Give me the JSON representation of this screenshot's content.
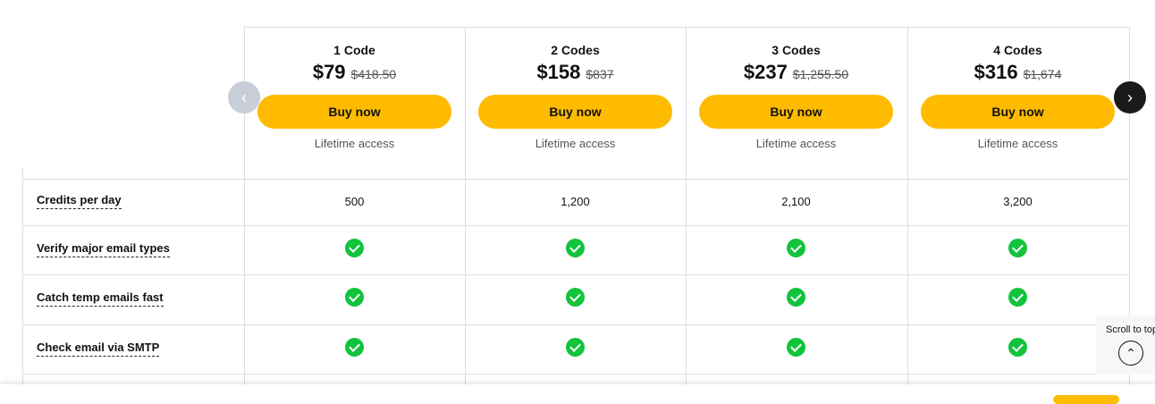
{
  "plans": [
    {
      "name": "1 Code",
      "price": "$79",
      "old_price": "$418.50",
      "button": "Buy now",
      "note": "Lifetime access"
    },
    {
      "name": "2 Codes",
      "price": "$158",
      "old_price": "$837",
      "button": "Buy now",
      "note": "Lifetime access"
    },
    {
      "name": "3 Codes",
      "price": "$237",
      "old_price": "$1,255.50",
      "button": "Buy now",
      "note": "Lifetime access"
    },
    {
      "name": "4 Codes",
      "price": "$316",
      "old_price": "$1,674",
      "button": "Buy now",
      "note": "Lifetime access"
    }
  ],
  "features": [
    {
      "label": "Credits per day",
      "values": [
        "500",
        "1,200",
        "2,100",
        "3,200"
      ]
    },
    {
      "label": "Verify major email types",
      "values": [
        "check",
        "check",
        "check",
        "check"
      ]
    },
    {
      "label": "Catch temp emails fast",
      "values": [
        "check",
        "check",
        "check",
        "check"
      ]
    },
    {
      "label": "Check email via SMTP",
      "values": [
        "check",
        "check",
        "check",
        "check"
      ]
    }
  ],
  "scroll_top": {
    "label": "Scroll to top"
  },
  "colors": {
    "accent": "#ffbb00",
    "check": "#12c33c"
  }
}
